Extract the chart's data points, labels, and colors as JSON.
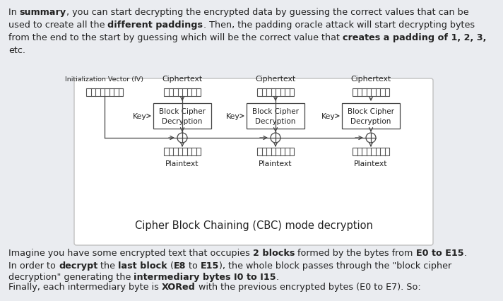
{
  "bg_color": "#eaecf0",
  "panel_bg": "#ffffff",
  "panel_border": "#c8c8c8",
  "text_color": "#222222",
  "diagram_caption": "Cipher Block Chaining (CBC) mode decryption",
  "font_size_body": 9.2,
  "font_size_diagram": 7.8,
  "font_size_caption": 10.5,
  "top_lines": [
    [
      [
        "In ",
        false
      ],
      [
        "summary",
        true
      ],
      [
        ", you can start decrypting the encrypted data by guessing the correct values that can be",
        false
      ]
    ],
    [
      [
        "used to create all the ",
        false
      ],
      [
        "different paddings",
        true
      ],
      [
        ". Then, the padding oracle attack will start decrypting bytes",
        false
      ]
    ],
    [
      [
        "from the end to the start by guessing which will be the correct value that ",
        false
      ],
      [
        "creates a padding of 1, 2, 3,",
        true
      ]
    ],
    [
      [
        "etc.",
        false
      ]
    ]
  ],
  "bottom_lines": [
    [
      [
        "Imagine you have some encrypted text that occupies ",
        false
      ],
      [
        "2 blocks",
        true
      ],
      [
        " formed by the bytes from ",
        false
      ],
      [
        "E0 to E15",
        true
      ],
      [
        ".",
        false
      ]
    ],
    [
      [
        "In order to ",
        false
      ],
      [
        "decrypt",
        true
      ],
      [
        " the ",
        false
      ],
      [
        "last block",
        true
      ],
      [
        " (",
        false
      ],
      [
        "E8",
        true
      ],
      [
        " to ",
        false
      ],
      [
        "E15",
        true
      ],
      [
        "), the whole block passes through the \"block cipher",
        false
      ]
    ],
    [
      [
        "decryption\" generating the ",
        false
      ],
      [
        "intermediary bytes I0 to I15",
        true
      ],
      [
        ".",
        false
      ]
    ],
    [
      [
        "Finally, each intermediary byte is ",
        false
      ],
      [
        "XORed",
        true
      ],
      [
        " with the previous encrypted bytes (E0 to E7). So:",
        false
      ]
    ]
  ]
}
